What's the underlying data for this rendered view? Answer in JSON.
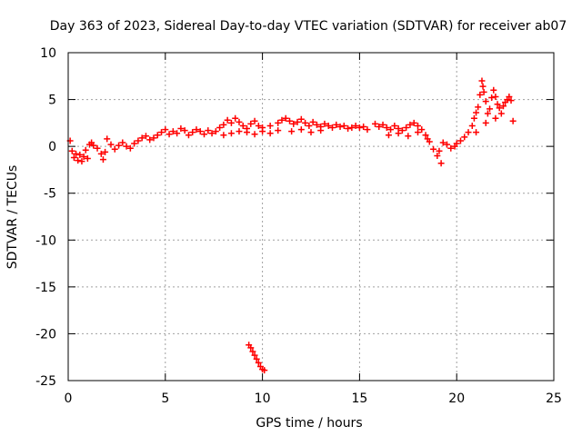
{
  "chart_data": {
    "type": "scatter",
    "title": "Day 363 of 2023, Sidereal Day-to-day VTEC variation (SDTVAR) for receiver ab07",
    "xlabel": "GPS time / hours",
    "ylabel": "SDTVAR / TECUs",
    "xlim": [
      0,
      25
    ],
    "ylim": [
      -25,
      10
    ],
    "grid": true,
    "marker": "+",
    "color": "#ff0000",
    "x_ticks": [
      0,
      5,
      10,
      15,
      20,
      25
    ],
    "y_ticks": [
      -25,
      -20,
      -15,
      -10,
      -5,
      0,
      5,
      10
    ],
    "x_tick_labels": [
      "0",
      "5",
      "10",
      "15",
      "20",
      "25"
    ],
    "y_tick_labels": [
      "-25",
      "-20",
      "-15",
      "-10",
      "-5",
      "0",
      "5",
      "10"
    ],
    "series": [
      {
        "name": "SDTVAR",
        "points": [
          [
            0.1,
            0.6
          ],
          [
            0.2,
            -0.5
          ],
          [
            0.3,
            -1.2
          ],
          [
            0.4,
            -0.8
          ],
          [
            0.5,
            -1.5
          ],
          [
            0.6,
            -0.9
          ],
          [
            0.7,
            -1.6
          ],
          [
            0.8,
            -1.1
          ],
          [
            0.9,
            -0.4
          ],
          [
            1.0,
            -1.3
          ],
          [
            1.1,
            0.2
          ],
          [
            1.2,
            0.4
          ],
          [
            1.3,
            0.1
          ],
          [
            1.5,
            -0.2
          ],
          [
            1.7,
            -0.8
          ],
          [
            1.8,
            -1.4
          ],
          [
            1.9,
            -0.6
          ],
          [
            2.0,
            0.8
          ],
          [
            2.2,
            0.2
          ],
          [
            2.4,
            -0.3
          ],
          [
            2.6,
            0.1
          ],
          [
            2.8,
            0.4
          ],
          [
            3.0,
            0.0
          ],
          [
            3.2,
            -0.2
          ],
          [
            3.4,
            0.3
          ],
          [
            3.6,
            0.6
          ],
          [
            3.8,
            0.9
          ],
          [
            4.0,
            1.1
          ],
          [
            4.2,
            0.7
          ],
          [
            4.4,
            0.9
          ],
          [
            4.6,
            1.2
          ],
          [
            4.8,
            1.5
          ],
          [
            5.0,
            1.8
          ],
          [
            5.2,
            1.3
          ],
          [
            5.4,
            1.6
          ],
          [
            5.6,
            1.4
          ],
          [
            5.8,
            1.9
          ],
          [
            6.0,
            1.7
          ],
          [
            6.2,
            1.2
          ],
          [
            6.4,
            1.5
          ],
          [
            6.6,
            1.8
          ],
          [
            6.8,
            1.6
          ],
          [
            7.0,
            1.3
          ],
          [
            7.2,
            1.7
          ],
          [
            7.4,
            1.4
          ],
          [
            7.6,
            1.6
          ],
          [
            7.8,
            2.0
          ],
          [
            8.0,
            2.3
          ],
          [
            8.2,
            2.8
          ],
          [
            8.4,
            2.5
          ],
          [
            8.6,
            3.0
          ],
          [
            8.8,
            2.6
          ],
          [
            9.0,
            2.2
          ],
          [
            9.2,
            1.9
          ],
          [
            9.4,
            2.4
          ],
          [
            9.6,
            2.7
          ],
          [
            9.8,
            2.2
          ],
          [
            8.0,
            1.2
          ],
          [
            8.4,
            1.4
          ],
          [
            8.8,
            1.6
          ],
          [
            9.2,
            1.5
          ],
          [
            9.6,
            1.3
          ],
          [
            10.0,
            1.6
          ],
          [
            10.4,
            1.4
          ],
          [
            10.8,
            1.7
          ],
          [
            10.0,
            2.0
          ],
          [
            10.4,
            2.2
          ],
          [
            10.8,
            2.5
          ],
          [
            11.0,
            2.8
          ],
          [
            11.2,
            3.0
          ],
          [
            11.4,
            2.7
          ],
          [
            11.6,
            2.4
          ],
          [
            11.8,
            2.6
          ],
          [
            12.0,
            2.9
          ],
          [
            12.2,
            2.5
          ],
          [
            12.4,
            2.2
          ],
          [
            12.6,
            2.6
          ],
          [
            12.8,
            2.3
          ],
          [
            13.0,
            2.1
          ],
          [
            13.2,
            2.4
          ],
          [
            13.4,
            2.2
          ],
          [
            13.6,
            2.0
          ],
          [
            13.8,
            2.3
          ],
          [
            14.0,
            2.1
          ],
          [
            14.2,
            2.2
          ],
          [
            14.4,
            1.9
          ],
          [
            14.6,
            2.0
          ],
          [
            14.8,
            2.2
          ],
          [
            15.0,
            2.0
          ],
          [
            15.2,
            2.1
          ],
          [
            15.4,
            1.8
          ],
          [
            11.5,
            1.6
          ],
          [
            12.0,
            1.8
          ],
          [
            12.5,
            1.5
          ],
          [
            13.0,
            1.7
          ],
          [
            15.8,
            2.4
          ],
          [
            16.0,
            2.1
          ],
          [
            16.2,
            2.3
          ],
          [
            16.4,
            2.0
          ],
          [
            16.6,
            1.8
          ],
          [
            16.8,
            2.2
          ],
          [
            17.0,
            1.9
          ],
          [
            17.2,
            1.7
          ],
          [
            17.4,
            2.0
          ],
          [
            17.6,
            2.3
          ],
          [
            17.8,
            2.5
          ],
          [
            18.0,
            2.2
          ],
          [
            18.2,
            1.8
          ],
          [
            18.4,
            1.2
          ],
          [
            18.6,
            0.5
          ],
          [
            18.8,
            -0.3
          ],
          [
            19.0,
            -1.0
          ],
          [
            19.2,
            -1.8
          ],
          [
            19.1,
            -0.5
          ],
          [
            19.3,
            0.4
          ],
          [
            19.5,
            0.2
          ],
          [
            19.7,
            -0.2
          ],
          [
            19.9,
            0.0
          ],
          [
            16.5,
            1.2
          ],
          [
            17.0,
            1.4
          ],
          [
            17.5,
            1.1
          ],
          [
            18.0,
            1.5
          ],
          [
            18.5,
            0.8
          ],
          [
            20.0,
            0.3
          ],
          [
            20.2,
            0.6
          ],
          [
            20.4,
            1.0
          ],
          [
            20.6,
            1.5
          ],
          [
            20.8,
            2.2
          ],
          [
            20.9,
            3.0
          ],
          [
            21.0,
            3.6
          ],
          [
            21.1,
            4.2
          ],
          [
            21.2,
            5.5
          ],
          [
            21.3,
            7.0
          ],
          [
            21.35,
            6.4
          ],
          [
            21.4,
            5.8
          ],
          [
            21.5,
            4.8
          ],
          [
            21.6,
            3.5
          ],
          [
            21.7,
            4.0
          ],
          [
            21.8,
            5.2
          ],
          [
            21.9,
            6.0
          ],
          [
            22.0,
            5.3
          ],
          [
            22.1,
            4.5
          ],
          [
            22.2,
            4.1
          ],
          [
            22.3,
            3.5
          ],
          [
            22.4,
            4.3
          ],
          [
            22.5,
            4.7
          ],
          [
            22.6,
            5.0
          ],
          [
            22.7,
            5.3
          ],
          [
            22.8,
            4.9
          ],
          [
            22.9,
            2.7
          ],
          [
            21.0,
            1.5
          ],
          [
            21.5,
            2.5
          ],
          [
            22.0,
            3.0
          ],
          [
            9.3,
            -21.2
          ],
          [
            9.4,
            -21.5
          ],
          [
            9.5,
            -21.9
          ],
          [
            9.6,
            -22.3
          ],
          [
            9.7,
            -22.7
          ],
          [
            9.8,
            -23.1
          ],
          [
            9.9,
            -23.5
          ],
          [
            10.0,
            -23.8
          ],
          [
            10.1,
            -23.9
          ]
        ]
      }
    ]
  }
}
